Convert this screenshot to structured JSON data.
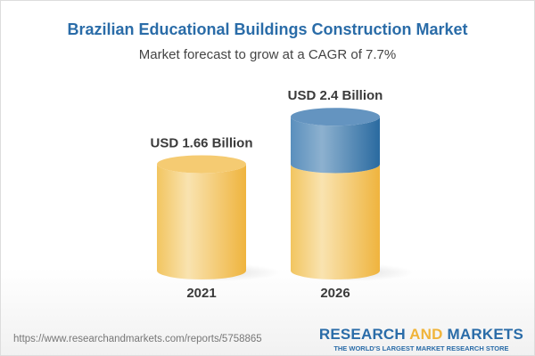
{
  "chart_data": {
    "type": "bar",
    "title": "Brazilian Educational Buildings Construction Market",
    "subtitle": "Market forecast to grow at a CAGR of 7.7%",
    "categories": [
      "2021",
      "2026"
    ],
    "values": [
      1.66,
      2.4
    ],
    "data_labels": [
      "USD 1.66 Billion",
      "USD 2.4 Billion"
    ],
    "unit": "USD Billion",
    "style": "3d-cylinder",
    "colors": {
      "base": "#f3c463",
      "growth": "#3f7cb0",
      "title": "#2a6ca8"
    }
  },
  "footer": {
    "url": "https://www.researchandmarkets.com/reports/5758865",
    "logo_part1": "RESEARCH ",
    "logo_part2": "AND",
    "logo_part3": " MARKETS",
    "tagline": "THE WORLD'S LARGEST MARKET RESEARCH STORE"
  }
}
